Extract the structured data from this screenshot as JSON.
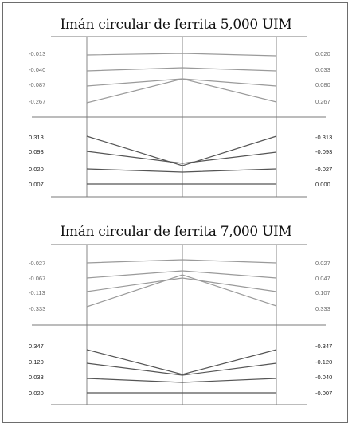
{
  "panels": [
    {
      "title": "Imán circular de ferrita 5,000 UIM",
      "top_left_labels": [
        "-0.013",
        "-0.040",
        "-0.087",
        "-0.267"
      ],
      "top_right_labels": [
        "0.020",
        "0.033",
        "0.080",
        "0.267"
      ],
      "bottom_left_labels": [
        "0.313",
        "0.093",
        "0.020",
        "0.007"
      ],
      "bottom_right_labels": [
        "-0.313",
        "-0.093",
        "-0.027",
        "0.000"
      ]
    },
    {
      "title": "Imán circular de ferrita 7,000 UIM",
      "top_left_labels": [
        "-0.027",
        "-0.067",
        "-0.113",
        "-0.333"
      ],
      "top_right_labels": [
        "0.027",
        "0.047",
        "0.107",
        "0.333"
      ],
      "bottom_left_labels": [
        "0.347",
        "0.120",
        "0.033",
        "0.020"
      ],
      "bottom_right_labels": [
        "-0.347",
        "-0.120",
        "-0.040",
        "-0.007"
      ]
    }
  ],
  "colors": {
    "frame": "#6d6d6d",
    "grid": "#7a7a7a",
    "curve_top": "#9a9a9a",
    "curve_bottom": "#555555"
  }
}
